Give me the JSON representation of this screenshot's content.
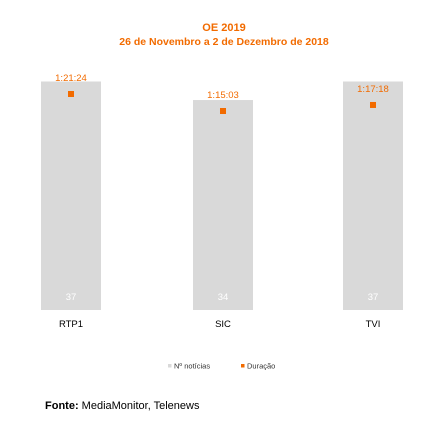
{
  "chart_data": {
    "type": "bar",
    "title": "OE 2019",
    "subtitle": "26 de Novembro a 2 de Dezembro de 2018",
    "categories": [
      "RTP1",
      "SIC",
      "TVI"
    ],
    "series": [
      {
        "name": "Nº notícias",
        "type": "bar",
        "color": "#d9d9d9",
        "values": [
          37,
          34,
          37
        ]
      },
      {
        "name": "Duração",
        "type": "marker",
        "color": "#f26b00",
        "values": [
          "1:21:24",
          "1:15:03",
          "1:17:18"
        ]
      }
    ],
    "ylim": [
      0,
      40
    ],
    "legend_position": "bottom",
    "grid": false
  },
  "colors": {
    "title": "#f26b00",
    "bar_label": "#ffffff",
    "axis_label": "#000000",
    "duration_label": "#f26b00"
  },
  "source": {
    "label": "Fonte:",
    "text": "MediaMonitor, Telenews"
  }
}
